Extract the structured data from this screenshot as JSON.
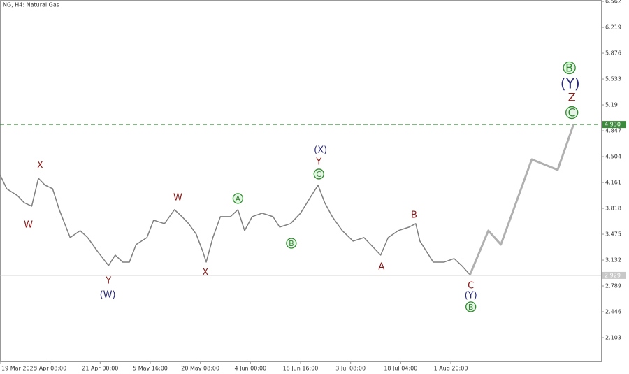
{
  "chart_data": {
    "type": "line",
    "title": "NG, H4:  Natural Gas",
    "xlim": [
      0,
      720
    ],
    "ylim": [
      1.788,
      6.581
    ],
    "xticks": [
      {
        "value": 0,
        "label": "19 Mar 2025"
      },
      {
        "value": 60,
        "label": "3 Apr 08:00"
      },
      {
        "value": 120,
        "label": "21 Apr 00:00"
      },
      {
        "value": 180,
        "label": "5 May 16:00"
      },
      {
        "value": 240,
        "label": "20 May 08:00"
      },
      {
        "value": 300,
        "label": "4 Jun 00:00"
      },
      {
        "value": 360,
        "label": "18 Jun 16:00"
      },
      {
        "value": 420,
        "label": "3 Jul 08:00"
      },
      {
        "value": 480,
        "label": "18 Jul 04:00"
      },
      {
        "value": 540,
        "label": "1 Aug 20:00"
      }
    ],
    "yticks": [
      6.562,
      6.219,
      5.876,
      5.533,
      5.19,
      4.847,
      4.504,
      4.161,
      3.818,
      3.475,
      3.132,
      2.789,
      2.446,
      2.103
    ],
    "series": [
      {
        "name": "price",
        "color": "#7f7f7f",
        "x": [
          0,
          8,
          21,
          29,
          38,
          46,
          54,
          63,
          71,
          84,
          96,
          105,
          117,
          130,
          138,
          147,
          155,
          163,
          176,
          184,
          197,
          209,
          218,
          226,
          235,
          243,
          247,
          255,
          264,
          276,
          285,
          293,
          302,
          314,
          327,
          335,
          348,
          360,
          373,
          381,
          389,
          398,
          410,
          423,
          436,
          448,
          456,
          465,
          477,
          490,
          498,
          503,
          511,
          519,
          532,
          544,
          553,
          563
        ],
        "values": [
          4.264,
          4.078,
          3.986,
          3.893,
          3.847,
          4.217,
          4.125,
          4.078,
          3.8,
          3.43,
          3.522,
          3.43,
          3.244,
          3.059,
          3.198,
          3.105,
          3.105,
          3.337,
          3.43,
          3.661,
          3.615,
          3.8,
          3.708,
          3.615,
          3.476,
          3.244,
          3.105,
          3.43,
          3.708,
          3.708,
          3.8,
          3.522,
          3.708,
          3.754,
          3.708,
          3.569,
          3.615,
          3.754,
          3.986,
          4.125,
          3.893,
          3.708,
          3.522,
          3.383,
          3.43,
          3.291,
          3.198,
          3.43,
          3.522,
          3.569,
          3.615,
          3.383,
          3.244,
          3.105,
          3.105,
          3.152,
          3.059,
          2.938
        ]
      },
      {
        "name": "forecast",
        "color": "#b0b0b0",
        "x": [
          563,
          585,
          600,
          637,
          668,
          687
        ],
        "values": [
          2.938,
          3.522,
          3.337,
          4.467,
          4.328,
          4.93
        ]
      }
    ],
    "hlines": [
      {
        "value": 4.93,
        "label": "4.930",
        "color": "#3c8a3c",
        "dashed": true
      },
      {
        "value": 2.929,
        "label": "2.929",
        "color": "#c8c8c8",
        "dashed": false
      }
    ],
    "annotations": [
      {
        "text": "W",
        "x": 34,
        "y": 3.606,
        "color": "#8b1a1a",
        "circled": false
      },
      {
        "text": "X",
        "x": 48,
        "y": 4.393,
        "color": "#8b1a1a",
        "circled": false
      },
      {
        "text": "Y",
        "x": 130,
        "y": 2.864,
        "color": "#8b1a1a",
        "circled": false
      },
      {
        "text": "(W)",
        "x": 129,
        "y": 2.679,
        "color": "#2b2b7a",
        "circled": false
      },
      {
        "text": "W",
        "x": 213,
        "y": 3.967,
        "color": "#8b1a1a",
        "circled": false
      },
      {
        "text": "X",
        "x": 246,
        "y": 2.975,
        "color": "#8b1a1a",
        "circled": false
      },
      {
        "text": "A",
        "x": 285,
        "y": 3.949,
        "color": "#2e8b2e",
        "circled": true
      },
      {
        "text": "B",
        "x": 349,
        "y": 3.355,
        "color": "#2e8b2e",
        "circled": true
      },
      {
        "text": "(X)",
        "x": 384,
        "y": 4.597,
        "color": "#2b2b7a",
        "circled": false
      },
      {
        "text": "Y",
        "x": 382,
        "y": 4.44,
        "color": "#8b1a1a",
        "circled": false
      },
      {
        "text": "C",
        "x": 382,
        "y": 4.273,
        "color": "#2e8b2e",
        "circled": true
      },
      {
        "text": "A",
        "x": 457,
        "y": 3.049,
        "color": "#8b1a1a",
        "circled": false
      },
      {
        "text": "B",
        "x": 496,
        "y": 3.735,
        "color": "#8b1a1a",
        "circled": false
      },
      {
        "text": "C",
        "x": 564,
        "y": 2.799,
        "color": "#8b1a1a",
        "circled": false
      },
      {
        "text": "(Y)",
        "x": 564,
        "y": 2.67,
        "color": "#2b2b7a",
        "circled": false
      },
      {
        "text": "B",
        "x": 564,
        "y": 2.512,
        "color": "#2e8b2e",
        "circled": true
      },
      {
        "text": "B",
        "x": 682,
        "y": 5.682,
        "color": "#2e8b2e",
        "circled": true
      },
      {
        "text": "(Y)",
        "x": 683,
        "y": 5.468,
        "color": "#2b2b7a",
        "circled": false
      },
      {
        "text": "Z",
        "x": 685,
        "y": 5.292,
        "color": "#8b1a1a",
        "circled": false
      },
      {
        "text": "C",
        "x": 685,
        "y": 5.088,
        "color": "#2e8b2e",
        "circled": true
      }
    ]
  }
}
